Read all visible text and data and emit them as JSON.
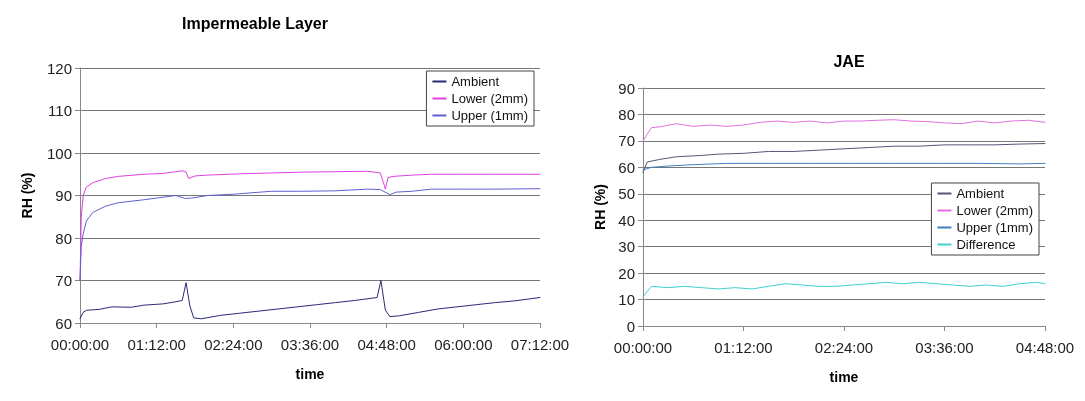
{
  "chart_data": [
    {
      "type": "line",
      "title": "Impermeable Layer",
      "xlabel": "time",
      "ylabel": "RH (%)",
      "xlim": [
        0,
        7.2
      ],
      "ylim": [
        60,
        120
      ],
      "yticks": [
        60,
        70,
        80,
        90,
        100,
        110,
        120
      ],
      "xticks": [
        {
          "value": 0,
          "label": "00:00:00"
        },
        {
          "value": 1.2,
          "label": "01:12:00"
        },
        {
          "value": 2.4,
          "label": "02:24:00"
        },
        {
          "value": 3.6,
          "label": "03:36:00"
        },
        {
          "value": 4.8,
          "label": "04:48:00"
        },
        {
          "value": 6,
          "label": "06:00:00"
        },
        {
          "value": 7.2,
          "label": "07:12:00"
        }
      ],
      "grid": "y",
      "legend": "top right",
      "series": [
        {
          "name": "Ambient",
          "color": "#2a2a78",
          "x": [
            0,
            0.05,
            0.1,
            0.3,
            0.5,
            0.8,
            1.0,
            1.3,
            1.5,
            1.6,
            1.66,
            1.72,
            1.78,
            1.9,
            2.2,
            2.5,
            2.8,
            3.1,
            3.4,
            3.7,
            4.0,
            4.3,
            4.65,
            4.71,
            4.78,
            4.85,
            5.0,
            5.3,
            5.6,
            5.9,
            6.2,
            6.5,
            6.8,
            7.2
          ],
          "values": [
            61,
            62.5,
            63,
            63.2,
            63.8,
            63.7,
            64.2,
            64.5,
            65,
            65.3,
            69.5,
            64,
            61.2,
            61,
            61.8,
            62.3,
            62.8,
            63.3,
            63.8,
            64.3,
            64.8,
            65.3,
            66,
            70,
            63,
            61.5,
            61.7,
            62.5,
            63.3,
            63.8,
            64.3,
            64.8,
            65.2,
            66
          ]
        },
        {
          "name": "Lower (2mm)",
          "color": "#e040e0",
          "x": [
            0,
            0.02,
            0.05,
            0.1,
            0.2,
            0.4,
            0.6,
            1.0,
            1.3,
            1.6,
            1.66,
            1.7,
            1.8,
            2.0,
            2.5,
            3.0,
            3.5,
            4.0,
            4.5,
            4.7,
            4.75,
            4.78,
            4.82,
            4.9,
            5.2,
            5.5,
            6.0,
            6.5,
            7.2
          ],
          "values": [
            70,
            85,
            90,
            92,
            93,
            94,
            94.5,
            95,
            95.2,
            95.8,
            95.5,
            94,
            94.6,
            94.8,
            95.1,
            95.3,
            95.5,
            95.6,
            95.7,
            95.3,
            93,
            91.5,
            94.2,
            94.5,
            94.8,
            95,
            95,
            95,
            95
          ]
        },
        {
          "name": "Upper (1mm)",
          "color": "#6060d0",
          "x": [
            0,
            0.02,
            0.05,
            0.1,
            0.2,
            0.4,
            0.6,
            1.0,
            1.3,
            1.5,
            1.65,
            1.75,
            2.0,
            2.4,
            3.0,
            3.5,
            4.0,
            4.5,
            4.7,
            4.85,
            4.95,
            5.2,
            5.5,
            6.0,
            6.5,
            7.2
          ],
          "values": [
            70,
            78,
            81,
            84,
            86,
            87.5,
            88.3,
            89,
            89.6,
            90,
            89.3,
            89.4,
            90,
            90.3,
            91,
            91,
            91.1,
            91.5,
            91.4,
            90.2,
            90.8,
            91,
            91.5,
            91.5,
            91.5,
            91.6
          ]
        }
      ]
    },
    {
      "type": "line",
      "title": "JAE",
      "xlabel": "time",
      "ylabel": "RH (%)",
      "xlim": [
        0,
        4.8
      ],
      "ylim": [
        0,
        90
      ],
      "yticks": [
        0,
        10,
        20,
        30,
        40,
        50,
        60,
        70,
        80,
        90
      ],
      "xticks": [
        {
          "value": 0,
          "label": "00:00:00"
        },
        {
          "value": 1.2,
          "label": "01:12:00"
        },
        {
          "value": 2.4,
          "label": "02:24:00"
        },
        {
          "value": 3.6,
          "label": "03:36:00"
        },
        {
          "value": 4.8,
          "label": "04:48:00"
        }
      ],
      "grid": "y",
      "legend": "right",
      "series": [
        {
          "name": "Ambient",
          "color": "#55557a",
          "x": [
            0,
            0.05,
            0.2,
            0.4,
            0.7,
            0.9,
            1.2,
            1.5,
            1.8,
            2.1,
            2.4,
            2.7,
            3.0,
            3.3,
            3.6,
            3.9,
            4.2,
            4.5,
            4.8
          ],
          "values": [
            58,
            62,
            63,
            64,
            64.5,
            65,
            65.3,
            66,
            66,
            66.5,
            67,
            67.5,
            68,
            68,
            68.5,
            68.5,
            68.5,
            68.8,
            69
          ]
        },
        {
          "name": "Lower (2mm)",
          "color": "#e070e0",
          "x": [
            0,
            0.1,
            0.2,
            0.4,
            0.6,
            0.8,
            1.0,
            1.2,
            1.4,
            1.6,
            1.8,
            2.0,
            2.2,
            2.4,
            2.6,
            2.8,
            3.0,
            3.2,
            3.4,
            3.6,
            3.8,
            4.0,
            4.2,
            4.4,
            4.6,
            4.8
          ],
          "values": [
            70,
            75,
            75.3,
            76.5,
            75.5,
            76,
            75.5,
            76,
            77,
            77.5,
            77,
            77.5,
            76.8,
            77.5,
            77.5,
            77.8,
            78,
            77.5,
            77.3,
            76.8,
            76.5,
            77.5,
            76.8,
            77.5,
            77.8,
            77
          ]
        },
        {
          "name": "Upper (1mm)",
          "color": "#4080c0",
          "x": [
            0,
            0.1,
            0.3,
            0.6,
            1.0,
            1.5,
            2.0,
            2.5,
            3.0,
            3.5,
            4.0,
            4.5,
            4.8
          ],
          "values": [
            59,
            60,
            60.5,
            61,
            61.5,
            61.5,
            61.5,
            61.5,
            61.5,
            61.5,
            61.5,
            61.3,
            61.5
          ]
        },
        {
          "name": "Difference",
          "color": "#40d0d0",
          "x": [
            0,
            0.1,
            0.3,
            0.5,
            0.7,
            0.9,
            1.1,
            1.3,
            1.5,
            1.7,
            1.9,
            2.1,
            2.3,
            2.5,
            2.7,
            2.9,
            3.1,
            3.3,
            3.5,
            3.7,
            3.9,
            4.1,
            4.3,
            4.5,
            4.7,
            4.8
          ],
          "values": [
            11,
            15,
            14.5,
            15,
            14.5,
            14,
            14.5,
            14,
            15,
            16,
            15.5,
            15,
            15,
            15.5,
            16,
            16.5,
            16,
            16.5,
            16,
            15.5,
            15,
            15.5,
            15,
            16,
            16.5,
            16
          ]
        }
      ]
    }
  ]
}
